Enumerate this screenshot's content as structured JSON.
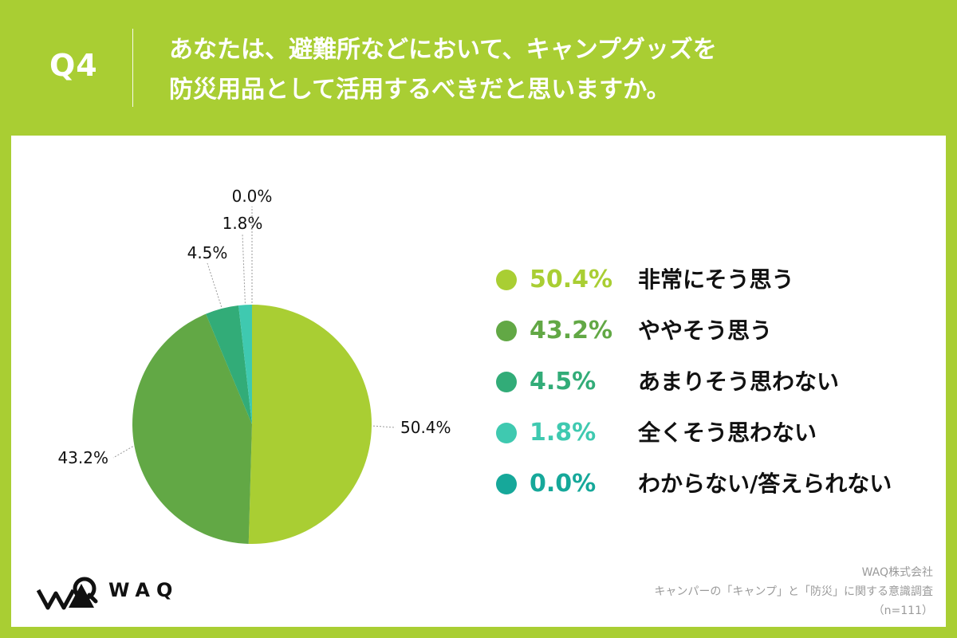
{
  "header": {
    "question_no": "Q4",
    "question_line1": "あなたは、避難所などにおいて、キャンプグッズを",
    "question_line2": "防災用品として活用するべきだと思いますか。"
  },
  "logo": {
    "text": "WAQ"
  },
  "footer": {
    "company": "WAQ株式会社",
    "survey": "キャンパーの「キャンプ」と「防災」に関する意識調査",
    "sample": "（n=111）"
  },
  "chart_data": {
    "type": "pie",
    "title": "",
    "categories": [
      "非常にそう思う",
      "ややそう思う",
      "あまりそう思わない",
      "全くそう思わない",
      "わからない/答えられない"
    ],
    "values": [
      50.4,
      43.2,
      4.5,
      1.8,
      0.0
    ],
    "labels": [
      "50.4%",
      "43.2%",
      "4.5%",
      "1.8%",
      "0.0%"
    ],
    "colors": [
      "#a9ce33",
      "#62a845",
      "#32ac78",
      "#3fc9b0",
      "#16a89a"
    ],
    "legend_placement": "right",
    "start_angle_deg": 0,
    "direction": "clockwise"
  },
  "legend": {
    "items": [
      {
        "value": "50.4%",
        "label": "非常にそう思う"
      },
      {
        "value": "43.2%",
        "label": "ややそう思う"
      },
      {
        "value": "4.5%",
        "label": "あまりそう思わない"
      },
      {
        "value": "1.8%",
        "label": "全くそう思わない"
      },
      {
        "value": "0.0%",
        "label": "わからない/答えられない"
      }
    ]
  }
}
